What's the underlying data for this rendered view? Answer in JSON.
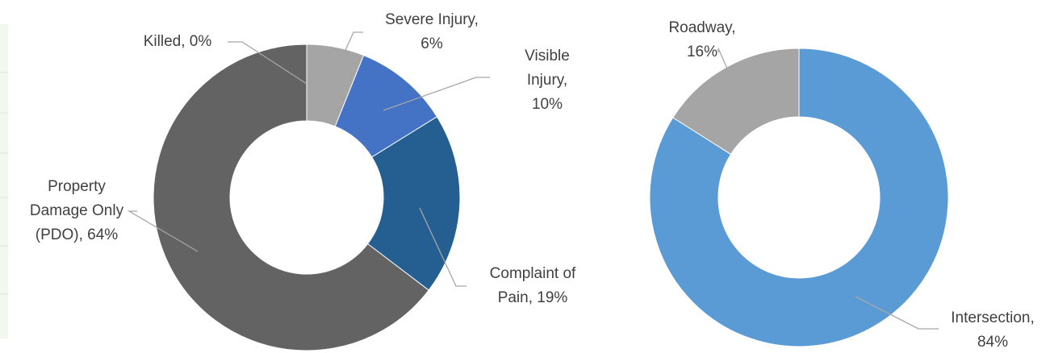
{
  "chart_data": [
    {
      "type": "donut",
      "values": [
        0,
        6,
        10,
        19,
        64
      ],
      "value_labels": [
        [
          "Killed, 0%"
        ],
        [
          "Severe Injury,",
          "6%"
        ],
        [
          "Visible",
          "Injury,",
          "10%"
        ],
        [
          "Complaint of",
          "Pain, 19%"
        ],
        [
          "Property",
          "Damage Only",
          "(PDO), 64%"
        ]
      ],
      "colors": [
        "#264478",
        "#a5a5a5",
        "#4472c4",
        "#255e91",
        "#636363"
      ]
    },
    {
      "type": "donut",
      "values": [
        84,
        16
      ],
      "value_labels": [
        [
          "Intersection,",
          "84%"
        ],
        [
          "Roadway,",
          "16%"
        ]
      ],
      "colors": [
        "#5b9bd5",
        "#a5a5a5"
      ]
    }
  ]
}
